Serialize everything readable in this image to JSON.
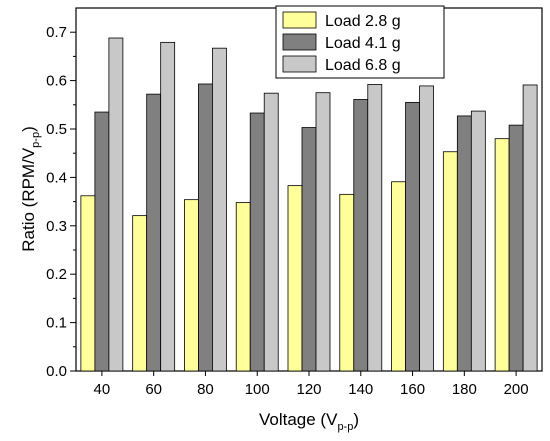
{
  "chart_data": {
    "type": "bar",
    "categories": [
      "40",
      "60",
      "80",
      "100",
      "120",
      "140",
      "160",
      "180",
      "200"
    ],
    "series": [
      {
        "name": "Load 2.8 g",
        "color": "#ffff99",
        "values": [
          0.362,
          0.321,
          0.354,
          0.348,
          0.383,
          0.365,
          0.391,
          0.453,
          0.48
        ]
      },
      {
        "name": "Load 4.1 g",
        "color": "#808080",
        "values": [
          0.535,
          0.572,
          0.593,
          0.533,
          0.503,
          0.561,
          0.555,
          0.527,
          0.508
        ]
      },
      {
        "name": "Load 6.8 g",
        "color": "#c8c8c8",
        "values": [
          0.688,
          0.679,
          0.667,
          0.574,
          0.575,
          0.592,
          0.589,
          0.537,
          0.591
        ]
      }
    ],
    "xlabel": {
      "main": "Voltage (V",
      "sub": "p-p",
      "end": ")"
    },
    "ylabel": {
      "main": "Ratio (RPM/V",
      "sub": "p-p",
      "end": ")"
    },
    "ylim": [
      0,
      0.75
    ],
    "yticks": [
      "0.0",
      "0.1",
      "0.2",
      "0.3",
      "0.4",
      "0.5",
      "0.6",
      "0.7"
    ],
    "legend_position": "top-right",
    "grid": false
  }
}
